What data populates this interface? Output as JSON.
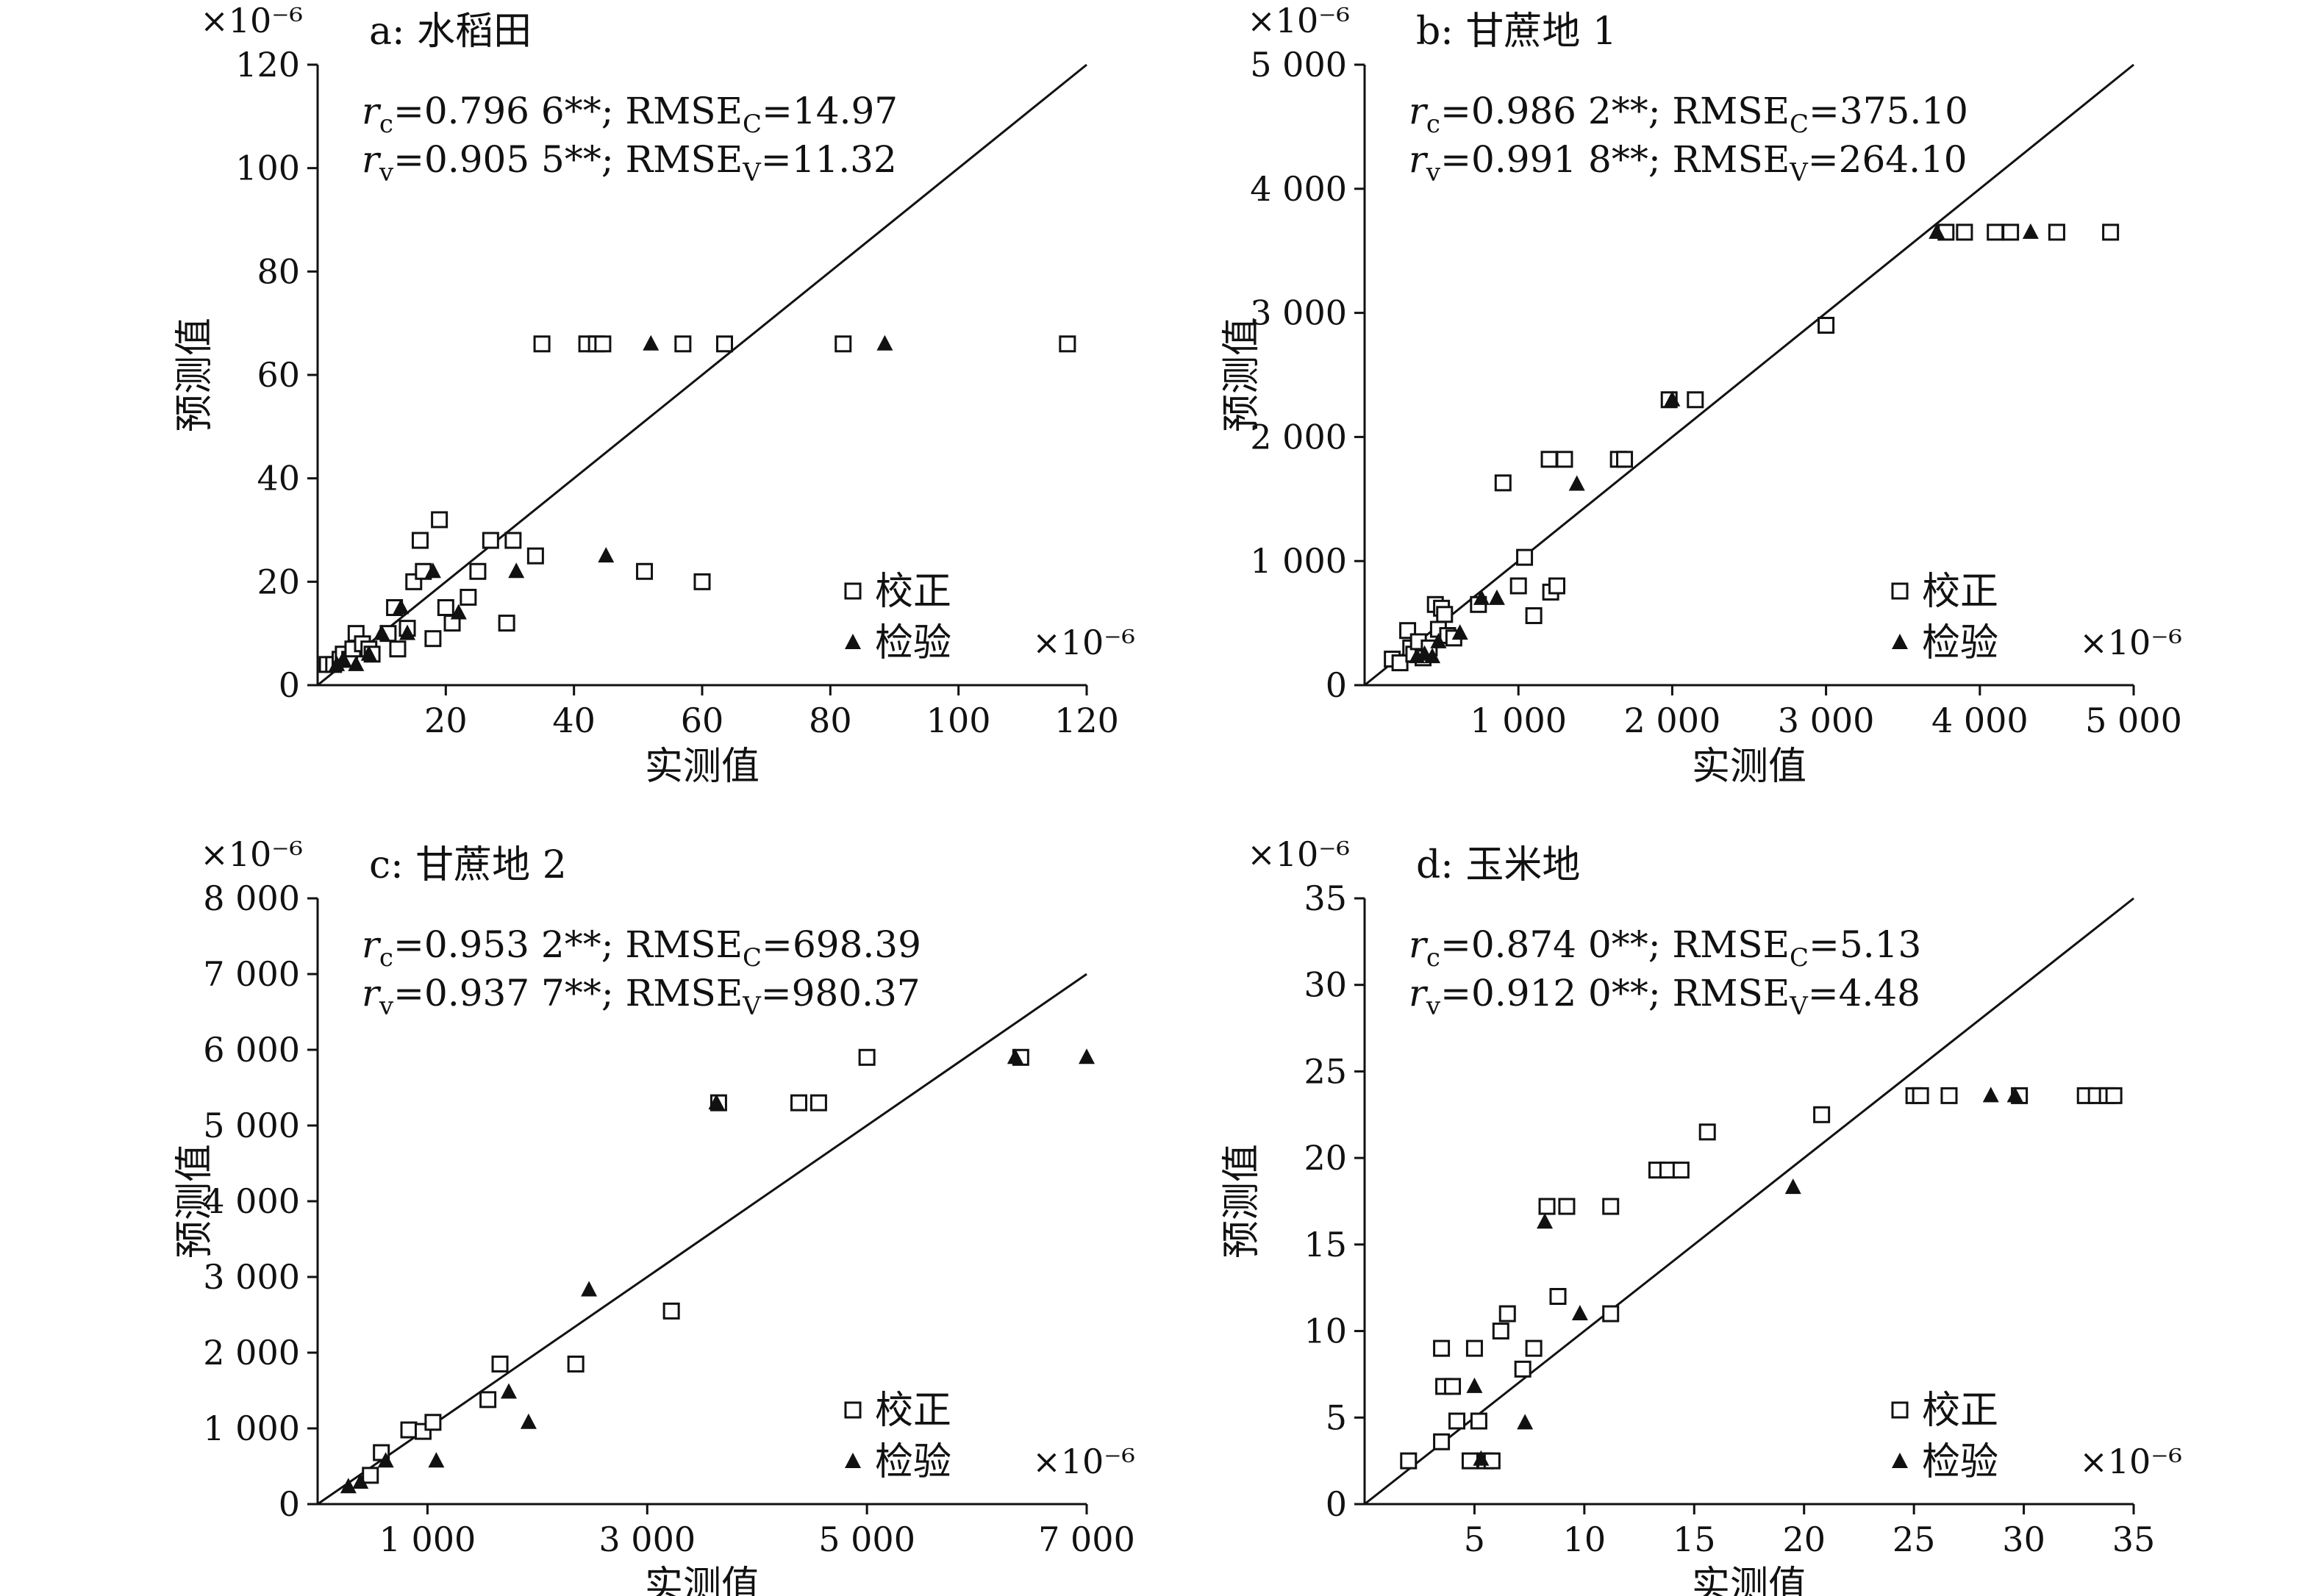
{
  "figure": {
    "scale_label": "×10⁻⁶",
    "legend": {
      "calibration": "校正",
      "validation": "检验"
    },
    "x_axis_label": "实测值",
    "y_axis_label": "预测值"
  },
  "chart_data": [
    {
      "type": "scatter",
      "title": "a: 水稻田",
      "xlabel": "实测值",
      "ylabel": "预测值",
      "xlim": [
        0,
        120
      ],
      "ylim": [
        0,
        120
      ],
      "xticks": [
        20,
        40,
        60,
        80,
        100,
        120
      ],
      "xtick_labels": [
        "20",
        "40",
        "60",
        "80",
        "100",
        "120"
      ],
      "yticks": [
        0,
        20,
        40,
        60,
        80,
        100,
        120
      ],
      "ytick_labels": [
        "0",
        "20",
        "40",
        "60",
        "80",
        "100",
        "120"
      ],
      "stats": [
        {
          "r_sym": "r",
          "r_sub": "c",
          "r_val": "=0.796 6**; RMSE",
          "rmse_sub": "C",
          "rmse_val": "=14.97"
        },
        {
          "r_sym": "r",
          "r_sub": "v",
          "r_val": "=0.905 5**; RMSE",
          "rmse_sub": "V",
          "rmse_val": "=11.32"
        }
      ],
      "series": [
        {
          "name": "校正",
          "marker": "open-square",
          "points": [
            [
              1.5,
              4
            ],
            [
              2.5,
              4
            ],
            [
              3.5,
              5
            ],
            [
              4,
              6
            ],
            [
              5,
              5
            ],
            [
              5.5,
              7
            ],
            [
              6,
              10
            ],
            [
              7,
              8
            ],
            [
              8,
              7
            ],
            [
              8.5,
              6
            ],
            [
              11,
              10
            ],
            [
              12,
              15
            ],
            [
              12.5,
              7
            ],
            [
              14,
              11
            ],
            [
              15,
              20
            ],
            [
              16,
              28
            ],
            [
              16.5,
              22
            ],
            [
              18,
              9
            ],
            [
              19,
              32
            ],
            [
              20,
              15
            ],
            [
              21,
              12
            ],
            [
              23.5,
              17
            ],
            [
              25,
              22
            ],
            [
              27,
              28
            ],
            [
              29.5,
              12
            ],
            [
              30.5,
              28
            ],
            [
              34,
              25
            ],
            [
              35,
              66
            ],
            [
              42,
              66
            ],
            [
              43.5,
              66
            ],
            [
              44.5,
              66
            ],
            [
              51,
              22
            ],
            [
              57,
              66
            ],
            [
              60,
              20
            ],
            [
              63.5,
              66
            ],
            [
              82,
              66
            ],
            [
              117,
              66
            ]
          ]
        },
        {
          "name": "检验",
          "marker": "filled-triangle",
          "points": [
            [
              3,
              4
            ],
            [
              4,
              5
            ],
            [
              6,
              4
            ],
            [
              8,
              6
            ],
            [
              10,
              10
            ],
            [
              13,
              15
            ],
            [
              14,
              10
            ],
            [
              18,
              22
            ],
            [
              22,
              14
            ],
            [
              31,
              22
            ],
            [
              45,
              25
            ],
            [
              52,
              66
            ],
            [
              88.5,
              66
            ]
          ]
        }
      ]
    },
    {
      "type": "scatter",
      "title": "b: 甘蔗地 1",
      "xlabel": "实测值",
      "ylabel": "预测值",
      "xlim": [
        0,
        5000
      ],
      "ylim": [
        0,
        5000
      ],
      "xticks": [
        1000,
        2000,
        3000,
        4000,
        5000
      ],
      "xtick_labels": [
        "1 000",
        "2 000",
        "3 000",
        "4 000",
        "5 000"
      ],
      "yticks": [
        0,
        1000,
        2000,
        3000,
        4000,
        5000
      ],
      "ytick_labels": [
        "0",
        "1 000",
        "2 000",
        "3 000",
        "4 000",
        "5 000"
      ],
      "stats": [
        {
          "r_sym": "r",
          "r_sub": "c",
          "r_val": "=0.986 2**; RMSE",
          "rmse_sub": "C",
          "rmse_val": "=375.10"
        },
        {
          "r_sym": "r",
          "r_sub": "v",
          "r_val": "=0.991 8**; RMSE",
          "rmse_sub": "V",
          "rmse_val": "=264.10"
        }
      ],
      "series": [
        {
          "name": "校正",
          "marker": "open-square",
          "points": [
            [
              180,
              210
            ],
            [
              230,
              180
            ],
            [
              280,
              440
            ],
            [
              300,
              300
            ],
            [
              320,
              250
            ],
            [
              350,
              350
            ],
            [
              380,
              220
            ],
            [
              420,
              300
            ],
            [
              460,
              650
            ],
            [
              480,
              450
            ],
            [
              500,
              620
            ],
            [
              520,
              570
            ],
            [
              540,
              400
            ],
            [
              580,
              380
            ],
            [
              740,
              650
            ],
            [
              900,
              1630
            ],
            [
              1000,
              800
            ],
            [
              1040,
              1030
            ],
            [
              1100,
              560
            ],
            [
              1200,
              1820
            ],
            [
              1210,
              750
            ],
            [
              1250,
              800
            ],
            [
              1300,
              1820
            ],
            [
              1650,
              1820
            ],
            [
              1690,
              1820
            ],
            [
              1980,
              2300
            ],
            [
              2150,
              2300
            ],
            [
              3000,
              2900
            ],
            [
              3780,
              3650
            ],
            [
              3900,
              3650
            ],
            [
              4100,
              3650
            ],
            [
              4200,
              3650
            ],
            [
              4500,
              3650
            ],
            [
              4850,
              3650
            ]
          ]
        },
        {
          "name": "检验",
          "marker": "filled-triangle",
          "points": [
            [
              340,
              230
            ],
            [
              390,
              250
            ],
            [
              440,
              230
            ],
            [
              480,
              350
            ],
            [
              620,
              420
            ],
            [
              760,
              700
            ],
            [
              860,
              700
            ],
            [
              1380,
              1620
            ],
            [
              2000,
              2300
            ],
            [
              3720,
              3650
            ],
            [
              4330,
              3650
            ]
          ]
        }
      ]
    },
    {
      "type": "scatter",
      "title": "c: 甘蔗地 2",
      "xlabel": "实测值",
      "ylabel": "预测值",
      "xlim": [
        0,
        7000
      ],
      "ylim": [
        0,
        8000
      ],
      "xticks": [
        1000,
        3000,
        5000,
        7000
      ],
      "xtick_labels": [
        "1 000",
        "3 000",
        "5 000",
        "7 000"
      ],
      "yticks": [
        0,
        1000,
        2000,
        3000,
        4000,
        5000,
        6000,
        7000,
        8000
      ],
      "ytick_labels": [
        "0",
        "1 000",
        "2 000",
        "3 000",
        "4 000",
        "5 000",
        "6 000",
        "7 000",
        "8 000"
      ],
      "stats": [
        {
          "r_sym": "r",
          "r_sub": "c",
          "r_val": "=0.953 2**; RMSE",
          "rmse_sub": "C",
          "rmse_val": "=698.39"
        },
        {
          "r_sym": "r",
          "r_sub": "v",
          "r_val": "=0.937 7**; RMSE",
          "rmse_sub": "V",
          "rmse_val": "=980.37"
        }
      ],
      "series": [
        {
          "name": "校正",
          "marker": "open-square",
          "points": [
            [
              480,
              380
            ],
            [
              580,
              680
            ],
            [
              830,
              980
            ],
            [
              960,
              960
            ],
            [
              1050,
              1080
            ],
            [
              1550,
              1380
            ],
            [
              1660,
              1850
            ],
            [
              2350,
              1850
            ],
            [
              3220,
              2550
            ],
            [
              3650,
              5300
            ],
            [
              4380,
              5300
            ],
            [
              4560,
              5300
            ],
            [
              5000,
              5900
            ],
            [
              6400,
              5900
            ]
          ]
        },
        {
          "name": "检验",
          "marker": "filled-triangle",
          "points": [
            [
              280,
              230
            ],
            [
              390,
              290
            ],
            [
              620,
              570
            ],
            [
              1080,
              570
            ],
            [
              1740,
              1480
            ],
            [
              1920,
              1080
            ],
            [
              2470,
              2830
            ],
            [
              3630,
              5300
            ],
            [
              6350,
              5900
            ],
            [
              7000,
              5900
            ]
          ]
        }
      ]
    },
    {
      "type": "scatter",
      "title": "d: 玉米地",
      "xlabel": "实测值",
      "ylabel": "预测值",
      "xlim": [
        0,
        35
      ],
      "ylim": [
        0,
        35
      ],
      "xticks": [
        5,
        10,
        15,
        20,
        25,
        30,
        35
      ],
      "xtick_labels": [
        "5",
        "10",
        "15",
        "20",
        "25",
        "30",
        "35"
      ],
      "yticks": [
        0,
        5,
        10,
        15,
        20,
        25,
        30,
        35
      ],
      "ytick_labels": [
        "0",
        "5",
        "10",
        "15",
        "20",
        "25",
        "30",
        "35"
      ],
      "stats": [
        {
          "r_sym": "r",
          "r_sub": "c",
          "r_val": "=0.874 0**; RMSE",
          "rmse_sub": "C",
          "rmse_val": "=5.13"
        },
        {
          "r_sym": "r",
          "r_sub": "v",
          "r_val": "=0.912 0**; RMSE",
          "rmse_sub": "V",
          "rmse_val": "=4.48"
        }
      ],
      "series": [
        {
          "name": "校正",
          "marker": "open-square",
          "points": [
            [
              2,
              2.5
            ],
            [
              3.5,
              3.6
            ],
            [
              3.5,
              9
            ],
            [
              3.6,
              6.8
            ],
            [
              4,
              6.8
            ],
            [
              4.2,
              4.8
            ],
            [
              4.8,
              2.5
            ],
            [
              5,
              9
            ],
            [
              5.2,
              4.8
            ],
            [
              5.5,
              2.5
            ],
            [
              5.8,
              2.5
            ],
            [
              6.2,
              10
            ],
            [
              6.5,
              11
            ],
            [
              7.2,
              7.8
            ],
            [
              7.7,
              9
            ],
            [
              8.3,
              17.2
            ],
            [
              8.8,
              12
            ],
            [
              9.2,
              17.2
            ],
            [
              11.2,
              11
            ],
            [
              11.2,
              17.2
            ],
            [
              13.3,
              19.3
            ],
            [
              13.8,
              19.3
            ],
            [
              14.4,
              19.3
            ],
            [
              15.6,
              21.5
            ],
            [
              20.8,
              22.5
            ],
            [
              25,
              23.6
            ],
            [
              25.3,
              23.6
            ],
            [
              26.6,
              23.6
            ],
            [
              29.8,
              23.6
            ],
            [
              32.8,
              23.6
            ],
            [
              33.3,
              23.6
            ],
            [
              33.8,
              23.6
            ],
            [
              34.1,
              23.6
            ]
          ]
        },
        {
          "name": "检验",
          "marker": "filled-triangle",
          "points": [
            [
              5,
              6.8
            ],
            [
              5.3,
              2.6
            ],
            [
              7.3,
              4.7
            ],
            [
              8.2,
              16.3
            ],
            [
              9.8,
              11
            ],
            [
              19.5,
              18.3
            ],
            [
              28.5,
              23.6
            ],
            [
              29.6,
              23.6
            ]
          ]
        }
      ]
    }
  ]
}
